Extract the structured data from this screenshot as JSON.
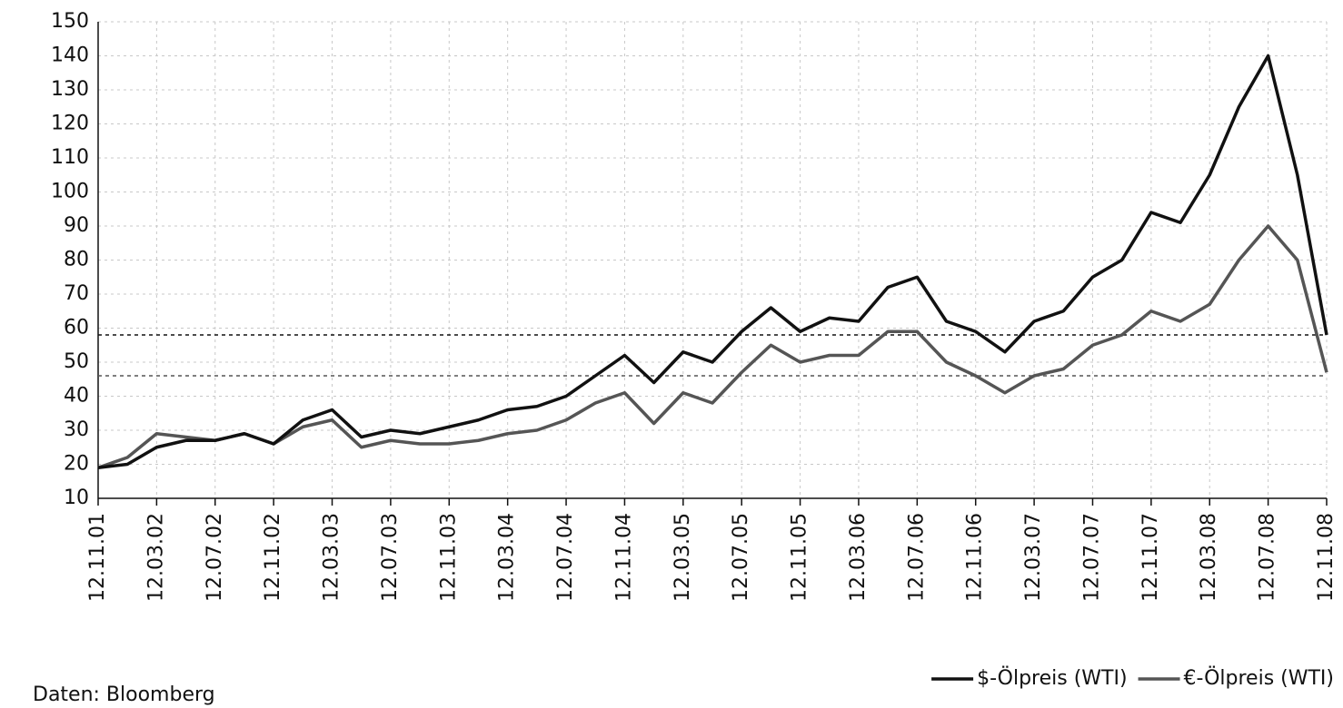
{
  "chart_data": {
    "type": "line",
    "categories": [
      "12.11.01",
      null,
      "12.03.02",
      null,
      "12.07.02",
      null,
      "12.11.02",
      null,
      "12.03.03",
      null,
      "12.07.03",
      null,
      "12.11.03",
      null,
      "12.03.04",
      null,
      "12.07.04",
      null,
      "12.11.04",
      null,
      "12.03.05",
      null,
      "12.07.05",
      null,
      "12.11.05",
      null,
      "12.03.06",
      null,
      "12.07.06",
      null,
      "12.11.06",
      null,
      "12.03.07",
      null,
      "12.07.07",
      null,
      "12.11.07",
      null,
      "12.03.08",
      null,
      "12.07.08",
      null,
      "12.11.08"
    ],
    "series": [
      {
        "name": "$-Ölpreis (WTI)",
        "color": "#111111",
        "values": [
          19,
          20,
          25,
          27,
          27,
          29,
          26,
          33,
          36,
          28,
          30,
          29,
          31,
          33,
          36,
          37,
          40,
          46,
          52,
          44,
          53,
          50,
          59,
          66,
          59,
          63,
          62,
          72,
          75,
          62,
          59,
          53,
          62,
          65,
          75,
          80,
          94,
          91,
          105,
          125,
          140,
          105,
          58
        ]
      },
      {
        "name": "€-Ölpreis (WTI)",
        "color": "#555555",
        "values": [
          19,
          22,
          29,
          28,
          27,
          29,
          26,
          31,
          33,
          25,
          27,
          26,
          26,
          27,
          29,
          30,
          33,
          38,
          41,
          32,
          41,
          38,
          47,
          55,
          50,
          52,
          52,
          59,
          59,
          50,
          46,
          41,
          46,
          48,
          55,
          58,
          65,
          62,
          67,
          80,
          90,
          80,
          47
        ]
      }
    ],
    "reference_lines": [
      {
        "value": 58,
        "color": "#111111"
      },
      {
        "value": 46,
        "color": "#555555"
      }
    ],
    "ylim": [
      10,
      150
    ],
    "yticks": [
      10,
      20,
      30,
      40,
      50,
      60,
      70,
      80,
      90,
      100,
      110,
      120,
      130,
      140,
      150
    ],
    "grid": true,
    "legend": "bottom-right",
    "source": "Daten: Bloomberg"
  }
}
